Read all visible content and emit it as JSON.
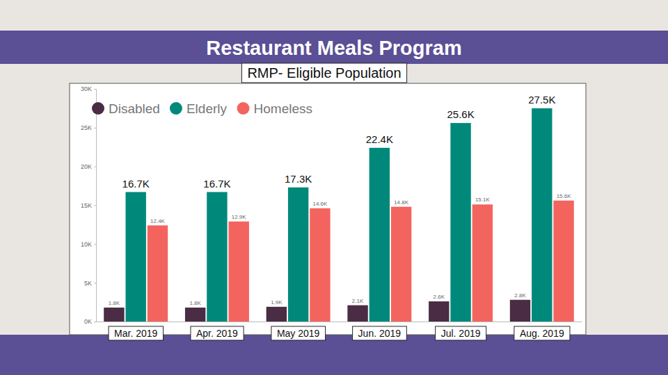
{
  "chart_data": {
    "type": "bar",
    "title": "Restaurant Meals Program",
    "subtitle": "RMP- Eligible Population",
    "categories": [
      "Mar. 2019",
      "Apr. 2019",
      "May 2019",
      "Jun. 2019",
      "Jul. 2019",
      "Aug. 2019"
    ],
    "series": [
      {
        "name": "Disabled",
        "color": "#4a2c45",
        "values": [
          1.8,
          1.8,
          1.9,
          2.1,
          2.6,
          2.8
        ],
        "value_labels": [
          "1.8K",
          "1.8K",
          "1.9K",
          "2.1K",
          "2.6K",
          "2.8K"
        ]
      },
      {
        "name": "Elderly",
        "color": "#00897b",
        "values": [
          16.7,
          16.7,
          17.3,
          22.4,
          25.6,
          27.5
        ],
        "value_labels": [
          "16.7K",
          "16.7K",
          "17.3K",
          "22.4K",
          "25.6K",
          "27.5K"
        ]
      },
      {
        "name": "Homeless",
        "color": "#f4645f",
        "values": [
          12.4,
          12.9,
          14.6,
          14.8,
          15.1,
          15.6
        ],
        "value_labels": [
          "12.4K",
          "12.9K",
          "14.6K",
          "14.8K",
          "15.1K",
          "15.6K"
        ]
      }
    ],
    "ylim": [
      0,
      30
    ],
    "yticks": [
      {
        "value": 0,
        "label": "0K"
      },
      {
        "value": 5,
        "label": "5K"
      },
      {
        "value": 10,
        "label": "10K"
      },
      {
        "value": 15,
        "label": "15K"
      },
      {
        "value": 20,
        "label": "20K"
      },
      {
        "value": 25,
        "label": "25K"
      },
      {
        "value": 30,
        "label": "30K"
      }
    ],
    "grid": false,
    "legend": "top-left",
    "data_labels": true
  }
}
